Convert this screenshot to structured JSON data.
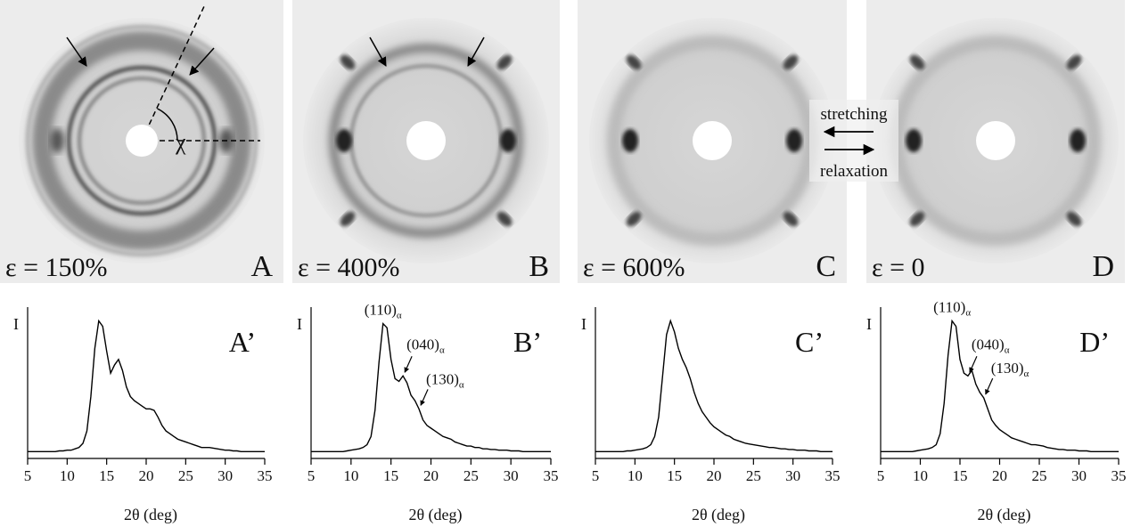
{
  "images": [
    {
      "strain_label": "ε = 150%",
      "letter": "A"
    },
    {
      "strain_label": "ε = 400%",
      "letter": "B"
    },
    {
      "strain_label": "ε = 600%",
      "letter": "C"
    },
    {
      "strain_label": "ε = 0",
      "letter": "D"
    }
  ],
  "labels": {
    "angle": "χ",
    "stretching": "stretching",
    "relaxation": "relaxation"
  },
  "chart_data": [
    {
      "type": "line",
      "title": "A’",
      "y_label": "I",
      "x_label": "2θ (deg)",
      "xlim": [
        5,
        35
      ],
      "xticks": [
        5,
        10,
        15,
        20,
        25,
        30,
        35
      ],
      "ylim": [
        0,
        110
      ],
      "x": [
        5,
        5.5,
        6,
        6.5,
        7,
        7.5,
        8,
        8.5,
        9,
        9.5,
        10,
        10.5,
        11,
        11.5,
        12,
        12.5,
        13,
        13.5,
        14,
        14.5,
        15,
        15.5,
        16,
        16.5,
        17,
        17.5,
        18,
        18.5,
        19,
        19.5,
        20,
        20.5,
        21,
        21.5,
        22,
        22.5,
        23,
        23.5,
        24,
        24.5,
        25,
        25.5,
        26,
        26.5,
        27,
        27.5,
        28,
        28.5,
        29,
        29.5,
        30,
        30.5,
        31,
        31.5,
        32,
        32.5,
        33,
        33.5,
        34,
        34.5,
        35
      ],
      "series": [
        {
          "color": "#000000",
          "values": [
            5,
            5,
            5,
            5,
            5,
            5,
            5,
            5,
            5.5,
            5.5,
            6,
            6,
            7,
            8,
            11,
            20,
            45,
            80,
            100,
            96,
            78,
            62,
            68,
            72,
            64,
            52,
            45,
            42,
            40,
            38,
            36,
            36,
            35,
            30,
            24,
            20,
            18,
            16,
            14,
            13,
            12,
            11,
            10,
            9,
            8,
            8,
            8,
            7.5,
            7,
            6.5,
            6,
            6,
            5.5,
            5.5,
            5,
            5,
            5,
            5,
            5,
            5,
            5
          ]
        }
      ],
      "annotations": []
    },
    {
      "type": "line",
      "title": "B’",
      "y_label": "I",
      "x_label": "2θ (deg)",
      "xlim": [
        5,
        35
      ],
      "xticks": [
        5,
        10,
        15,
        20,
        25,
        30,
        35
      ],
      "ylim": [
        0,
        110
      ],
      "x": [
        5,
        5.5,
        6,
        6.5,
        7,
        7.5,
        8,
        8.5,
        9,
        9.5,
        10,
        10.5,
        11,
        11.5,
        12,
        12.5,
        13,
        13.5,
        14,
        14.5,
        15,
        15.5,
        16,
        16.5,
        17,
        17.5,
        18,
        18.5,
        19,
        19.5,
        20,
        20.5,
        21,
        21.5,
        22,
        22.5,
        23,
        23.5,
        24,
        24.5,
        25,
        25.5,
        26,
        26.5,
        27,
        27.5,
        28,
        28.5,
        29,
        29.5,
        30,
        30.5,
        31,
        31.5,
        32,
        32.5,
        33,
        33.5,
        34,
        34.5,
        35
      ],
      "series": [
        {
          "color": "#000000",
          "values": [
            5,
            5,
            5,
            5,
            5,
            5,
            5,
            5,
            5,
            5.5,
            6,
            6.5,
            7,
            8,
            10,
            16,
            35,
            70,
            98,
            95,
            72,
            58,
            56,
            60,
            55,
            46,
            42,
            36,
            28,
            24,
            22,
            20,
            18,
            16,
            15,
            14,
            12,
            11,
            10,
            9,
            9,
            8,
            8,
            7,
            7,
            6.5,
            6.5,
            6,
            6,
            6,
            5.5,
            5.5,
            5.5,
            5,
            5,
            5,
            5,
            5,
            5,
            5,
            5
          ]
        }
      ],
      "annotations": [
        {
          "label": "(110)",
          "subscript": "α",
          "x": 14,
          "arrow": false
        },
        {
          "label": "(040)",
          "subscript": "α",
          "x": 16.5,
          "arrow": true
        },
        {
          "label": "(130)",
          "subscript": "α",
          "x": 18.5,
          "arrow": true
        }
      ]
    },
    {
      "type": "line",
      "title": "C’",
      "y_label": "I",
      "x_label": "2θ (deg)",
      "xlim": [
        5,
        35
      ],
      "xticks": [
        5,
        10,
        15,
        20,
        25,
        30,
        35
      ],
      "ylim": [
        0,
        110
      ],
      "x": [
        5,
        5.5,
        6,
        6.5,
        7,
        7.5,
        8,
        8.5,
        9,
        9.5,
        10,
        10.5,
        11,
        11.5,
        12,
        12.5,
        13,
        13.5,
        14,
        14.5,
        15,
        15.5,
        16,
        16.5,
        17,
        17.5,
        18,
        18.5,
        19,
        19.5,
        20,
        20.5,
        21,
        21.5,
        22,
        22.5,
        23,
        23.5,
        24,
        24.5,
        25,
        25.5,
        26,
        26.5,
        27,
        27.5,
        28,
        28.5,
        29,
        29.5,
        30,
        30.5,
        31,
        31.5,
        32,
        32.5,
        33,
        33.5,
        34,
        34.5,
        35
      ],
      "series": [
        {
          "color": "#000000",
          "values": [
            5,
            5,
            5,
            5,
            5,
            5,
            5,
            5,
            5.5,
            5.5,
            6,
            6.5,
            7,
            8,
            10,
            16,
            30,
            60,
            90,
            100,
            92,
            80,
            72,
            66,
            58,
            48,
            40,
            34,
            30,
            26,
            23,
            21,
            19,
            17,
            16,
            14,
            13,
            12,
            11,
            10.5,
            10,
            9.5,
            9,
            8.5,
            8,
            8,
            7.5,
            7,
            7,
            6.5,
            6.5,
            6,
            6,
            6,
            5.5,
            5.5,
            5.5,
            5,
            5,
            5,
            5
          ]
        }
      ],
      "annotations": []
    },
    {
      "type": "line",
      "title": "D’",
      "y_label": "I",
      "x_label": "2θ (deg)",
      "xlim": [
        5,
        35
      ],
      "xticks": [
        5,
        10,
        15,
        20,
        25,
        30,
        35
      ],
      "ylim": [
        0,
        110
      ],
      "x": [
        5,
        5.5,
        6,
        6.5,
        7,
        7.5,
        8,
        8.5,
        9,
        9.5,
        10,
        10.5,
        11,
        11.5,
        12,
        12.5,
        13,
        13.5,
        14,
        14.5,
        15,
        15.5,
        16,
        16.5,
        17,
        17.5,
        18,
        18.5,
        19,
        19.5,
        20,
        20.5,
        21,
        21.5,
        22,
        22.5,
        23,
        23.5,
        24,
        24.5,
        25,
        25.5,
        26,
        26.5,
        27,
        27.5,
        28,
        28.5,
        29,
        29.5,
        30,
        30.5,
        31,
        31.5,
        32,
        32.5,
        33,
        33.5,
        34,
        34.5,
        35
      ],
      "series": [
        {
          "color": "#000000",
          "values": [
            5,
            5,
            5,
            5,
            5,
            5,
            5,
            5,
            5,
            5.5,
            6,
            6.5,
            7,
            8,
            10,
            18,
            40,
            75,
            100,
            96,
            72,
            62,
            60,
            64,
            54,
            48,
            44,
            36,
            28,
            24,
            21,
            19,
            17,
            15,
            14,
            13,
            12,
            11,
            10,
            10,
            9.5,
            9,
            8,
            7.5,
            7,
            6.5,
            6.5,
            6,
            6,
            6,
            5.5,
            5.5,
            5.5,
            5,
            5,
            5,
            5,
            5,
            5,
            5,
            5
          ]
        }
      ],
      "annotations": [
        {
          "label": "(110)",
          "subscript": "α",
          "x": 14,
          "arrow": false
        },
        {
          "label": "(040)",
          "subscript": "α",
          "x": 16,
          "arrow": true
        },
        {
          "label": "(130)",
          "subscript": "α",
          "x": 18,
          "arrow": true
        }
      ]
    }
  ]
}
